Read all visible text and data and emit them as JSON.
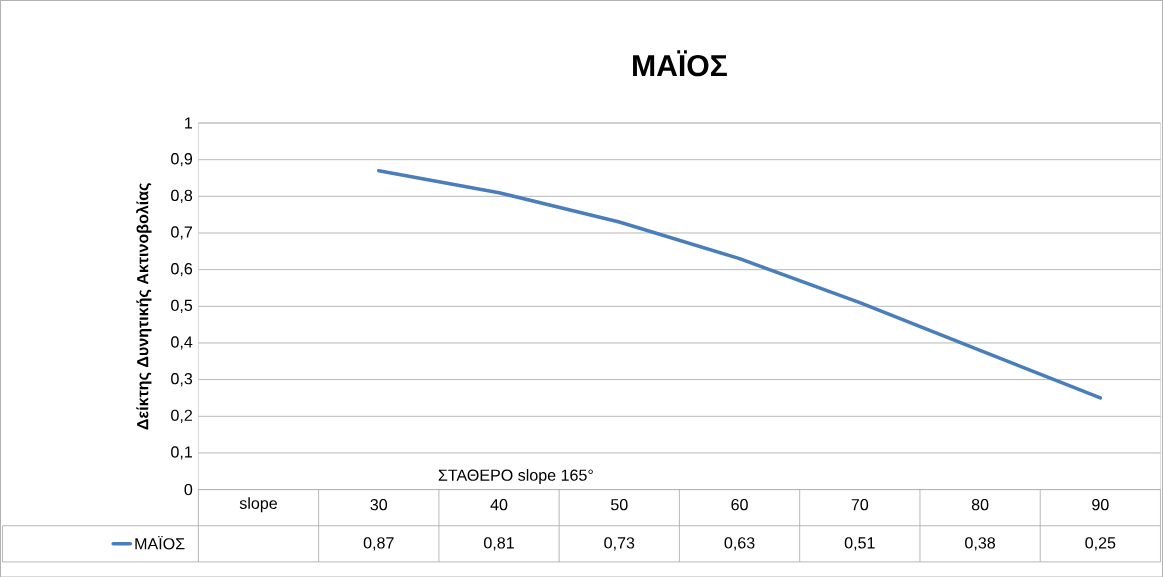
{
  "chart_data": {
    "type": "line",
    "title": "ΜΑΪΟΣ",
    "ylabel": "Δείκτης Δυνητικής Ακτινοβολίας",
    "categories": [
      "slope",
      "30",
      "40",
      "50",
      "60",
      "70",
      "80",
      "90"
    ],
    "series": [
      {
        "name": "ΜΑΪΟΣ",
        "color": "#4a7ebb",
        "values": [
          null,
          0.87,
          0.81,
          0.73,
          0.63,
          0.51,
          0.38,
          0.25
        ],
        "value_labels": [
          null,
          "0,87",
          "0,81",
          "0,73",
          "0,63",
          "0,51",
          "0,38",
          "0,25"
        ]
      }
    ],
    "ylim": [
      0,
      1
    ],
    "yticks": [
      {
        "value": 0,
        "label": "0"
      },
      {
        "value": 0.1,
        "label": "0,1"
      },
      {
        "value": 0.2,
        "label": "0,2"
      },
      {
        "value": 0.3,
        "label": "0,3"
      },
      {
        "value": 0.4,
        "label": "0,4"
      },
      {
        "value": 0.5,
        "label": "0,5"
      },
      {
        "value": 0.6,
        "label": "0,6"
      },
      {
        "value": 0.7,
        "label": "0,7"
      },
      {
        "value": 0.8,
        "label": "0,8"
      },
      {
        "value": 0.9,
        "label": "0,9"
      },
      {
        "value": 1,
        "label": "1"
      }
    ],
    "annotations": [
      "ΣΤΑΘΕΡΟ slope 165°"
    ],
    "grid": "y",
    "legend": "bottom left",
    "marker": "none",
    "line_style": "solid"
  }
}
